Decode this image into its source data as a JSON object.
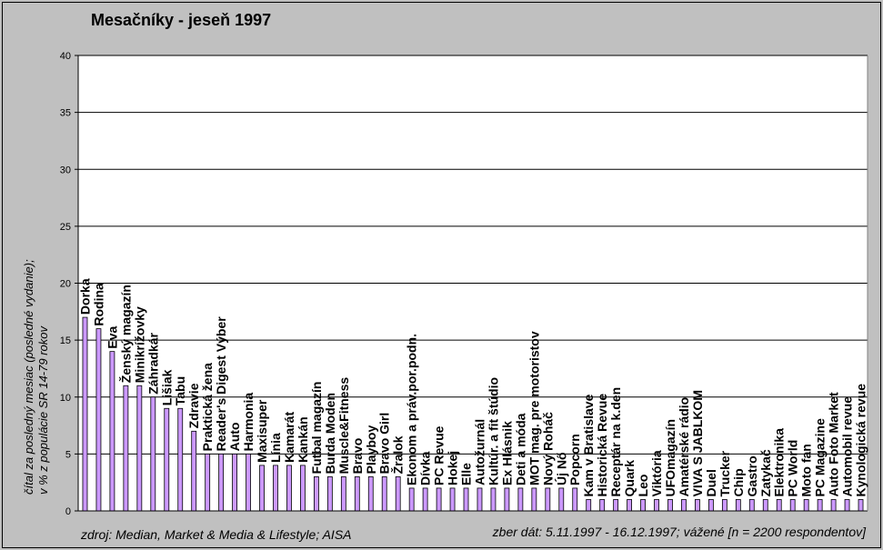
{
  "chart_data": {
    "type": "bar",
    "title": "Mesačníky - jeseň 1997",
    "ylabel_lines": [
      "čítal za posledný mesiac (posledné vydanie);",
      "v % z populácie SR 14-79 rokov"
    ],
    "xlabel": "",
    "ylim": [
      0,
      40
    ],
    "yticks": [
      0,
      5,
      10,
      15,
      20,
      25,
      30,
      35,
      40
    ],
    "grid": true,
    "bar_color": "#cc99ff",
    "categories": [
      "Dorka",
      "Rodina",
      "Eva",
      "Ženský magazín",
      "Minikrížovky",
      "Záhradkár",
      "Lišiak",
      "Tabu",
      "Zdravie",
      "Praktická žena",
      "Reader's Digest Výber",
      "Auto",
      "Harmonia",
      "Maxisuper",
      "Línia",
      "Kamarát",
      "Kankán",
      "Futbal magazín",
      "Burda Moden",
      "Muscle&Fitness",
      "Bravo",
      "Playboy",
      "Bravo Girl",
      "Žralok",
      "Ekonom a práv.por.podn.",
      "Dívka",
      "PC Revue",
      "Hokej",
      "Elle",
      "Autožurnál",
      "Kultúr. a fit štúdio",
      "Ex Hlásnik",
      "Deti a móda",
      "MOT mag. pre motoristov",
      "Nový Roháč",
      "Új Nő",
      "Popcorn",
      "Kam v Bratislave",
      "Historická Revue",
      "Receptár na k.den",
      "Quark",
      "Leo",
      "Viktória",
      "UFOmagazín",
      "Amatérské rádio",
      "VIVA S JABLKOM",
      "Duel",
      "Trucker",
      "Chip",
      "Gastro",
      "Zatykač",
      "Elektronika",
      "PC World",
      "Moto fan",
      "PC Magazine",
      "Auto Foto Market",
      "Automobil revue",
      "Kynologická revue"
    ],
    "values": [
      17,
      16,
      14,
      11,
      11,
      10,
      9,
      9,
      7,
      5,
      5,
      5,
      5,
      4,
      4,
      4,
      4,
      3,
      3,
      3,
      3,
      3,
      3,
      3,
      2,
      2,
      2,
      2,
      2,
      2,
      2,
      2,
      2,
      2,
      2,
      2,
      2,
      1,
      1,
      1,
      1,
      1,
      1,
      1,
      1,
      1,
      1,
      1,
      1,
      1,
      1,
      1,
      1,
      1,
      1,
      1,
      1,
      1
    ]
  },
  "footer": {
    "source": "zdroj: Median, Market & Media & Lifestyle; AISA",
    "collection": "zber dát: 5.11.1997 - 16.12.1997; vážené [n = 2200 respondentov]"
  }
}
